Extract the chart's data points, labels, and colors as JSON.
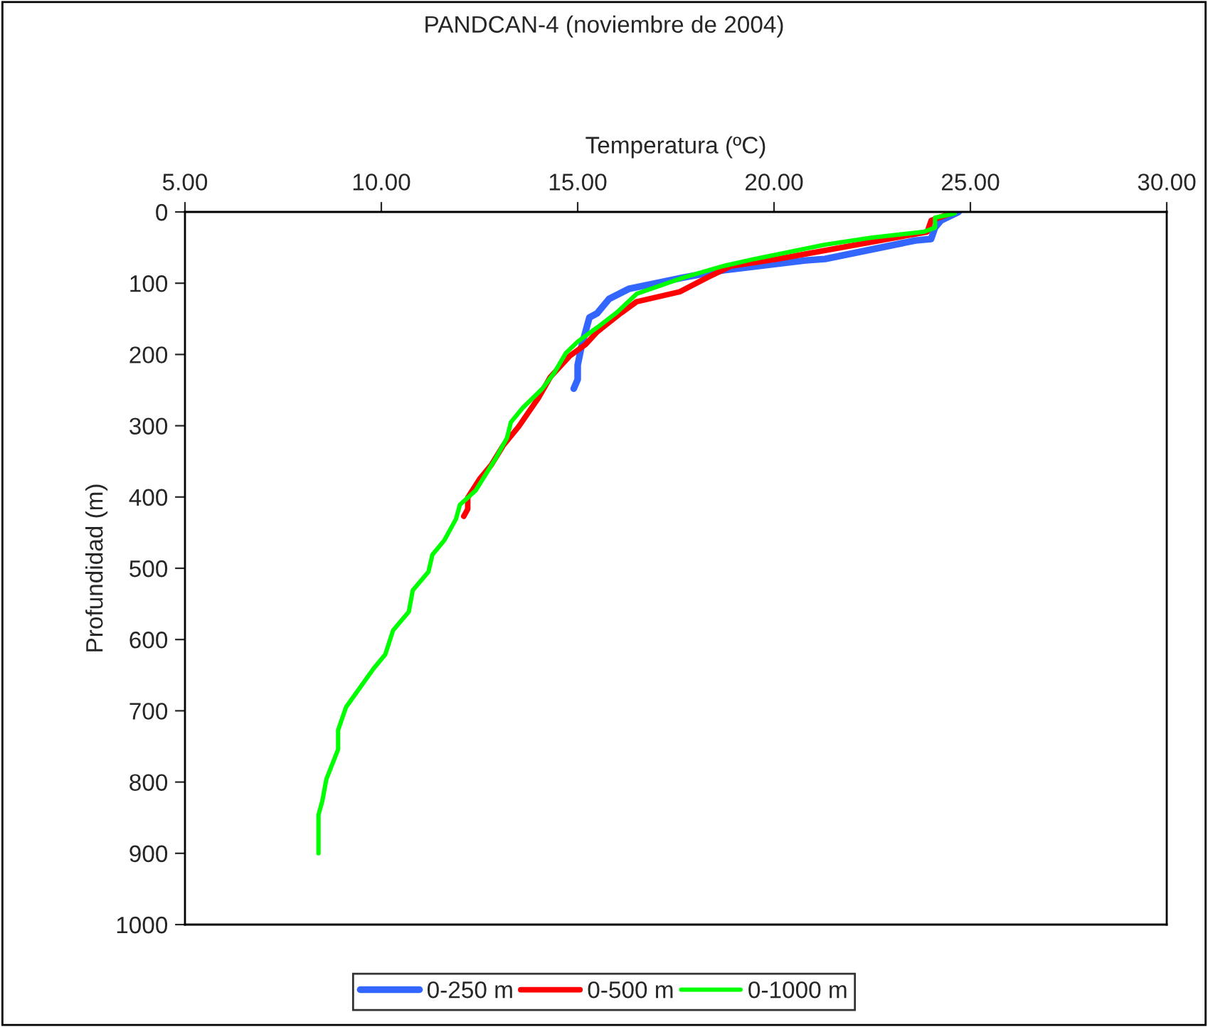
{
  "chart_data": {
    "type": "line",
    "title": "PANDCAN-4 (noviembre de 2004)",
    "xlabel": "Temperatura (ºC)",
    "ylabel": "Profundidad (m)",
    "xlim": [
      5,
      30
    ],
    "xticks": [
      {
        "value": 5,
        "label": "5.00"
      },
      {
        "value": 10,
        "label": "10.00"
      },
      {
        "value": 15,
        "label": "15.00"
      },
      {
        "value": 20,
        "label": "20.00"
      },
      {
        "value": 25,
        "label": "25.00"
      },
      {
        "value": 30,
        "label": "30.00"
      }
    ],
    "ylim": [
      1000,
      0
    ],
    "yticks": [
      0,
      100,
      200,
      300,
      400,
      500,
      600,
      700,
      800,
      900,
      1000
    ],
    "grid": false,
    "legend": "bottom",
    "marker": "none",
    "line_style": "solid",
    "series": [
      {
        "name": "0-250 m",
        "color": "#3366ff",
        "x": [
          24.7,
          24.25,
          24.1,
          24.0,
          23.6,
          21.3,
          20.8,
          18.7,
          17.7,
          16.3,
          15.8,
          15.5,
          15.3,
          15.2,
          15.1,
          15.0,
          15.0,
          14.9
        ],
        "values": [
          0,
          12,
          22,
          38,
          40,
          66,
          68,
          82,
          92,
          108,
          122,
          142,
          148,
          168,
          188,
          215,
          235,
          248
        ]
      },
      {
        "name": "0-500 m",
        "color": "#ff0000",
        "x": [
          24.5,
          24.0,
          23.9,
          22.5,
          20.1,
          18.9,
          18.3,
          17.6,
          16.5,
          16.1,
          15.5,
          15.2,
          14.8,
          14.3,
          14.0,
          13.5,
          13.1,
          12.8,
          12.5,
          12.2,
          12.2,
          12.1
        ],
        "values": [
          2,
          12,
          28,
          42,
          66,
          76,
          92,
          112,
          126,
          142,
          168,
          186,
          202,
          232,
          261,
          301,
          328,
          355,
          375,
          401,
          417,
          427
        ]
      },
      {
        "name": "0-1000 m",
        "color": "#00ff00",
        "x": [
          24.6,
          24.1,
          24.1,
          23.8,
          22.5,
          21.3,
          19.5,
          18.7,
          17.7,
          16.5,
          16.0,
          15.5,
          15.0,
          14.7,
          14.4,
          14.1,
          13.6,
          13.3,
          13.2,
          12.9,
          12.4,
          12.0,
          11.9,
          11.6,
          11.3,
          11.2,
          10.8,
          10.7,
          10.3,
          10.1,
          9.8,
          9.1,
          8.9,
          8.9,
          8.6,
          8.5,
          8.4,
          8.4,
          8.4
        ],
        "values": [
          2,
          8,
          22,
          28,
          36,
          46,
          66,
          76,
          92,
          115,
          141,
          162,
          182,
          198,
          226,
          248,
          275,
          295,
          317,
          347,
          391,
          411,
          431,
          461,
          481,
          505,
          531,
          561,
          587,
          621,
          641,
          695,
          727,
          754,
          796,
          826,
          846,
          880,
          900
        ]
      }
    ]
  }
}
